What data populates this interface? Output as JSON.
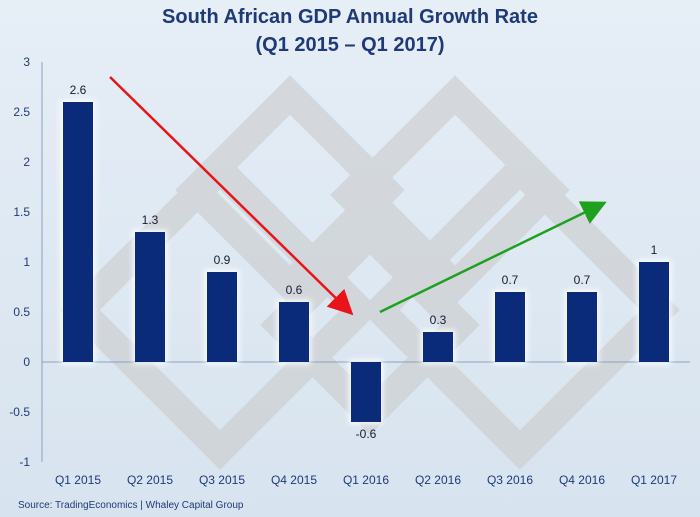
{
  "chart_data": {
    "type": "bar",
    "title": "South African GDP Annual Growth Rate",
    "subtitle": "(Q1 2015 – Q1 2017)",
    "categories": [
      "Q1 2015",
      "Q2 2015",
      "Q3 2015",
      "Q4 2015",
      "Q1 2016",
      "Q2 2016",
      "Q3 2016",
      "Q4 2016",
      "Q1 2017"
    ],
    "values": [
      2.6,
      1.3,
      0.9,
      0.6,
      -0.6,
      0.3,
      0.7,
      0.7,
      1
    ],
    "value_labels": [
      "2.6",
      "1.3",
      "0.9",
      "0.6",
      "-0.6",
      "0.3",
      "0.7",
      "0.7",
      "1"
    ],
    "ylim": [
      -1,
      3
    ],
    "yticks": [
      -1,
      -0.5,
      0,
      0.5,
      1,
      1.5,
      2,
      2.5,
      3
    ],
    "ytick_labels": [
      "-1",
      "-0.5",
      "0",
      "0.5",
      "1",
      "1.5",
      "2",
      "2.5",
      "3"
    ],
    "xlabel": "",
    "ylabel": "",
    "grid": false,
    "bar_color": "#0a2a7a",
    "annotations": [
      {
        "type": "arrow",
        "color": "#e8141a",
        "meaning": "declining trend",
        "from_category": "Q1 2015",
        "to_category": "Q1 2016"
      },
      {
        "type": "arrow",
        "color": "#1fa01f",
        "meaning": "recovering trend",
        "from_category": "Q1 2016",
        "to_category": "Q4 2016"
      }
    ]
  },
  "source": "Source: TradingEconomics | Whaley Capital Group",
  "colors": {
    "title": "#1f3a78",
    "axis_text": "#1f3a78",
    "watermark": "#c9c9c9"
  }
}
